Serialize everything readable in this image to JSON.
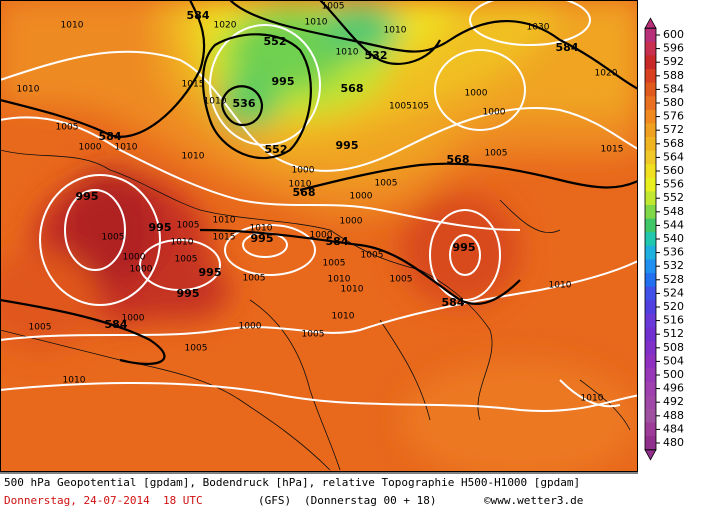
{
  "map": {
    "contour_labels": [
      "584",
      "1010",
      "1020",
      "1005",
      "1010",
      "552",
      "1010",
      "532",
      "1010",
      "1030",
      "584",
      "1020",
      "1010",
      "1015",
      "995",
      "1010",
      "536",
      "568",
      "1005105",
      "1000",
      "1000",
      "1005",
      "584",
      "1000",
      "1010",
      "1010",
      "552",
      "995",
      "568",
      "1005",
      "1015",
      "1000",
      "1010",
      "1005",
      "995",
      "568",
      "1000",
      "1005",
      "1010",
      "1015",
      "1010",
      "995",
      "1000",
      "1000",
      "584",
      "1005",
      "1010",
      "995",
      "1005",
      "1005",
      "1000",
      "1000",
      "995",
      "995",
      "1005",
      "1005",
      "1010",
      "1010",
      "1005",
      "1010",
      "995",
      "584",
      "1005",
      "584",
      "1000",
      "1000",
      "1010",
      "1005",
      "1005",
      "1010",
      "1010"
    ]
  },
  "colorbar": {
    "levels": [
      600,
      596,
      592,
      588,
      584,
      580,
      576,
      572,
      568,
      564,
      560,
      556,
      552,
      548,
      544,
      540,
      536,
      532,
      528,
      524,
      520,
      516,
      512,
      508,
      504,
      500,
      496,
      492,
      488,
      484,
      480
    ],
    "colors": [
      "#b8307a",
      "#c83050",
      "#c82828",
      "#d84020",
      "#e05a1e",
      "#e87020",
      "#f08a20",
      "#f0a020",
      "#f0b420",
      "#f0c828",
      "#f0e020",
      "#e8f020",
      "#c0e830",
      "#80d848",
      "#40c868",
      "#20c8b0",
      "#20b0e0",
      "#2090f0",
      "#2070f0",
      "#4050e8",
      "#5040e0",
      "#6838d8",
      "#7030d0",
      "#8030c8",
      "#9030c0",
      "#9838b8",
      "#a040b0",
      "#a048a8",
      "#a050a0",
      "#9c3c98",
      "#90308c"
    ]
  },
  "footer": {
    "description": "500 hPa Geopotential [gpdam], Bodendruck [hPa], relative Topographie H500-H1000 [gpdam]",
    "date": "Donnerstag, 24-07-2014  18 UTC",
    "model": "(GFS)",
    "run": "(Donnerstag 00 + 18)",
    "credit": "©www.wetter3.de"
  }
}
